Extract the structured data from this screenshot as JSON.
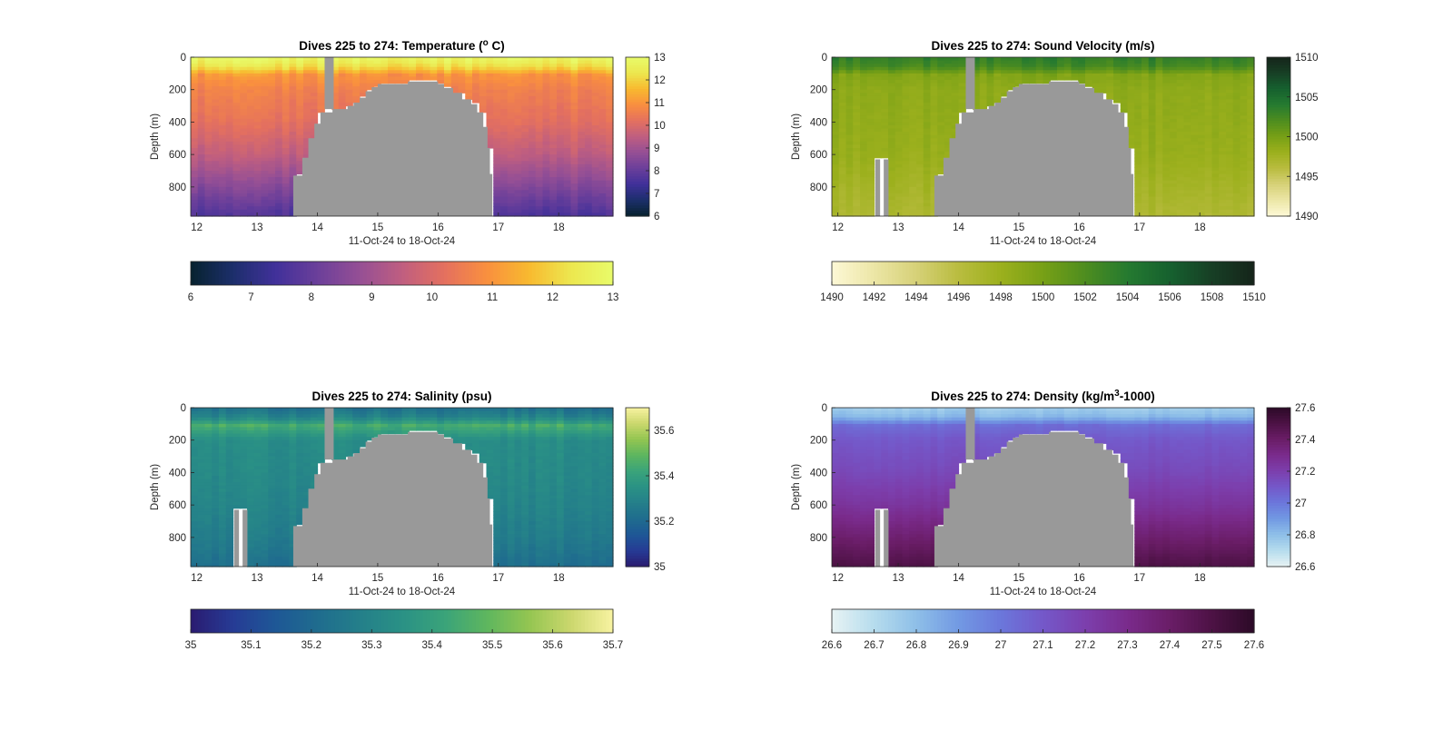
{
  "chart_data": [
    {
      "type": "heatmap",
      "title": "Dives 225 to 274: Temperature (",
      "title_sup": "o",
      "title_end": " C)",
      "xlabel": "11-Oct-24 to 18-Oct-24",
      "ylabel": "Depth (m)",
      "xlim": [
        11.9,
        18.9
      ],
      "ylim": [
        980,
        0
      ],
      "xticks": [
        "12",
        "13",
        "14",
        "15",
        "16",
        "17",
        "18"
      ],
      "yticks": [
        "0",
        "200",
        "400",
        "600",
        "800"
      ],
      "colorbar_ticks": [
        "13",
        "12",
        "11",
        "10",
        "9",
        "8",
        "7",
        "6"
      ],
      "colorbar_range": [
        6,
        13
      ],
      "h_colorbar_ticks": [
        "6",
        "7",
        "8",
        "9",
        "10",
        "11",
        "12",
        "13"
      ],
      "colormap": [
        "#07222e",
        "#1c2f6b",
        "#40309a",
        "#6b3f9a",
        "#954f95",
        "#bf5e80",
        "#e4705f",
        "#f98f3f",
        "#f8b92f",
        "#ece74f",
        "#e8fb6a"
      ],
      "profile": [
        [
          0,
          12.9
        ],
        [
          60,
          12.2
        ],
        [
          110,
          11.0
        ],
        [
          200,
          10.6
        ],
        [
          400,
          10.2
        ],
        [
          600,
          9.5
        ],
        [
          800,
          8.5
        ],
        [
          980,
          7.6
        ]
      ],
      "range": [
        6,
        13
      ],
      "variability": 0.45
    },
    {
      "type": "heatmap",
      "title": "Dives 225 to 274: Sound Velocity (m/s)",
      "xlabel": "11-Oct-24 to 18-Oct-24",
      "ylabel": "Depth (m)",
      "xlim": [
        11.9,
        18.9
      ],
      "ylim": [
        980,
        0
      ],
      "xticks": [
        "12",
        "13",
        "14",
        "15",
        "16",
        "17",
        "18"
      ],
      "yticks": [
        "0",
        "200",
        "400",
        "600",
        "800"
      ],
      "colorbar_ticks": [
        "1510",
        "1505",
        "1500",
        "1495",
        "1490"
      ],
      "colorbar_range": [
        1490,
        1510
      ],
      "h_colorbar_ticks": [
        "1490",
        "1492",
        "1494",
        "1496",
        "1498",
        "1500",
        "1502",
        "1504",
        "1506",
        "1508",
        "1510"
      ],
      "colormap": [
        "#fdf8d6",
        "#ece6a6",
        "#d6d178",
        "#b9bc3f",
        "#9cb01d",
        "#77a016",
        "#4e8d1f",
        "#257a30",
        "#16612f",
        "#173f25",
        "#15241a"
      ],
      "profile": [
        [
          0,
          1503.5
        ],
        [
          60,
          1502.5
        ],
        [
          110,
          1499.5
        ],
        [
          200,
          1498.8
        ],
        [
          400,
          1498.6
        ],
        [
          600,
          1498.3
        ],
        [
          800,
          1497.5
        ],
        [
          980,
          1496.8
        ]
      ],
      "range": [
        1490,
        1510
      ],
      "variability": 1.1
    },
    {
      "type": "heatmap",
      "title": "Dives 225 to 274: Salinity (psu)",
      "xlabel": "11-Oct-24 to 18-Oct-24",
      "ylabel": "Depth (m)",
      "xlim": [
        11.9,
        18.9
      ],
      "ylim": [
        980,
        0
      ],
      "xticks": [
        "12",
        "13",
        "14",
        "15",
        "16",
        "17",
        "18"
      ],
      "yticks": [
        "0",
        "200",
        "400",
        "600",
        "800"
      ],
      "colorbar_ticks": [
        "35.6",
        "35.4",
        "35.2",
        "35"
      ],
      "colorbar_range": [
        35.0,
        35.7
      ],
      "h_colorbar_ticks": [
        "35",
        "35.1",
        "35.2",
        "35.3",
        "35.4",
        "35.5",
        "35.6",
        "35.7"
      ],
      "colormap": [
        "#2a1b70",
        "#263b95",
        "#1e5796",
        "#1f6c8e",
        "#247f8a",
        "#2a9185",
        "#3aa37a",
        "#5db65f",
        "#93c551",
        "#cbd76d",
        "#f8f3a1"
      ],
      "profile": [
        [
          0,
          35.22
        ],
        [
          60,
          35.3
        ],
        [
          110,
          35.45
        ],
        [
          200,
          35.33
        ],
        [
          400,
          35.32
        ],
        [
          600,
          35.3
        ],
        [
          800,
          35.27
        ],
        [
          980,
          35.22
        ]
      ],
      "range": [
        35.0,
        35.7
      ],
      "variability": 0.05
    },
    {
      "type": "heatmap",
      "title": "Dives 225 to 274: Density (kg/m",
      "title_sup": "3",
      "title_end": "-1000)",
      "xlabel": "11-Oct-24 to 18-Oct-24",
      "ylabel": "Depth (m)",
      "xlim": [
        11.9,
        18.9
      ],
      "ylim": [
        980,
        0
      ],
      "xticks": [
        "12",
        "13",
        "14",
        "15",
        "16",
        "17",
        "18"
      ],
      "yticks": [
        "0",
        "200",
        "400",
        "600",
        "800"
      ],
      "colorbar_ticks": [
        "27.6",
        "27.4",
        "27.2",
        "27",
        "26.8",
        "26.6"
      ],
      "colorbar_range": [
        26.6,
        27.6
      ],
      "h_colorbar_ticks": [
        "26.6",
        "26.7",
        "26.8",
        "26.9",
        "27",
        "27.1",
        "27.2",
        "27.3",
        "27.4",
        "27.5",
        "27.6"
      ],
      "colormap": [
        "#e7f3f4",
        "#b6dced",
        "#8ebfe8",
        "#7299e3",
        "#6b77db",
        "#7458c9",
        "#7c3fad",
        "#7a2b8c",
        "#6a1d67",
        "#4d1245",
        "#2c0a27"
      ],
      "profile": [
        [
          0,
          26.75
        ],
        [
          60,
          26.82
        ],
        [
          110,
          27.03
        ],
        [
          200,
          27.1
        ],
        [
          400,
          27.16
        ],
        [
          600,
          27.25
        ],
        [
          800,
          27.38
        ],
        [
          980,
          27.5
        ]
      ],
      "range": [
        26.6,
        27.6
      ],
      "variability": 0.03
    }
  ]
}
